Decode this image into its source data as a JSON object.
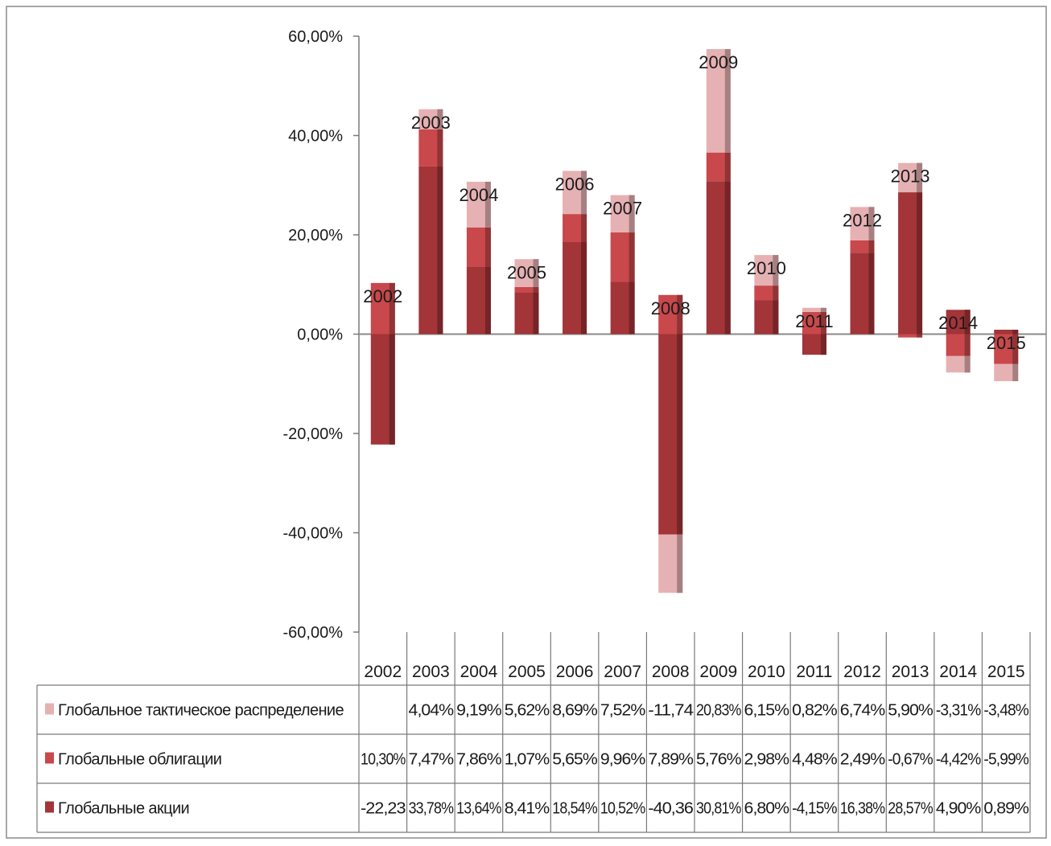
{
  "chart_data": {
    "type": "bar",
    "stacked": true,
    "data_table": true,
    "categories": [
      "2002",
      "2003",
      "2004",
      "2005",
      "2006",
      "2007",
      "2008",
      "2009",
      "2010",
      "2011",
      "2012",
      "2013",
      "2014",
      "2015"
    ],
    "series": [
      {
        "name": "Глобальное тактическое распределение",
        "color": "#E6B1B3",
        "values": [
          null,
          4.04,
          9.19,
          5.62,
          8.69,
          7.52,
          -11.74,
          20.83,
          6.15,
          0.82,
          6.74,
          5.9,
          -3.31,
          -3.48
        ],
        "labels": [
          "",
          "4,04%",
          "9,19%",
          "5,62%",
          "8,69%",
          "7,52%",
          "-11,74",
          "20,83%",
          "6,15%",
          "0,82%",
          "6,74%",
          "5,90%",
          "-3,31%",
          "-3,48%"
        ]
      },
      {
        "name": "Глобальные облигации",
        "color": "#C8484B",
        "values": [
          10.3,
          7.47,
          7.86,
          1.07,
          5.65,
          9.96,
          7.89,
          5.76,
          2.98,
          4.48,
          2.49,
          -0.67,
          -4.42,
          -5.99
        ],
        "labels": [
          "10,30%",
          "7,47%",
          "7,86%",
          "1,07%",
          "5,65%",
          "9,96%",
          "7,89%",
          "5,76%",
          "2,98%",
          "4,48%",
          "2,49%",
          "-0,67%",
          "-4,42%",
          "-5,99%"
        ]
      },
      {
        "name": "Глобальные акции",
        "color": "#A33438",
        "values": [
          -22.23,
          33.78,
          13.64,
          8.41,
          18.54,
          10.52,
          -40.36,
          30.81,
          6.8,
          -4.15,
          16.38,
          28.57,
          4.9,
          0.89
        ],
        "labels": [
          "-22,23",
          "33,78%",
          "13,64%",
          "8,41%",
          "18,54%",
          "10,52%",
          "-40,36",
          "30,81%",
          "6,80%",
          "-4,15%",
          "16,38%",
          "28,57%",
          "4,90%",
          "0,89%"
        ]
      }
    ],
    "yticks": [
      "60,00%",
      "40,00%",
      "20,00%",
      "0,00%",
      "-20,00%",
      "-40,00%",
      "-60,00%"
    ],
    "ylim": [
      -60,
      60
    ],
    "title": "",
    "xlabel": "",
    "ylabel": "",
    "grid": false,
    "legend": "table-left"
  }
}
